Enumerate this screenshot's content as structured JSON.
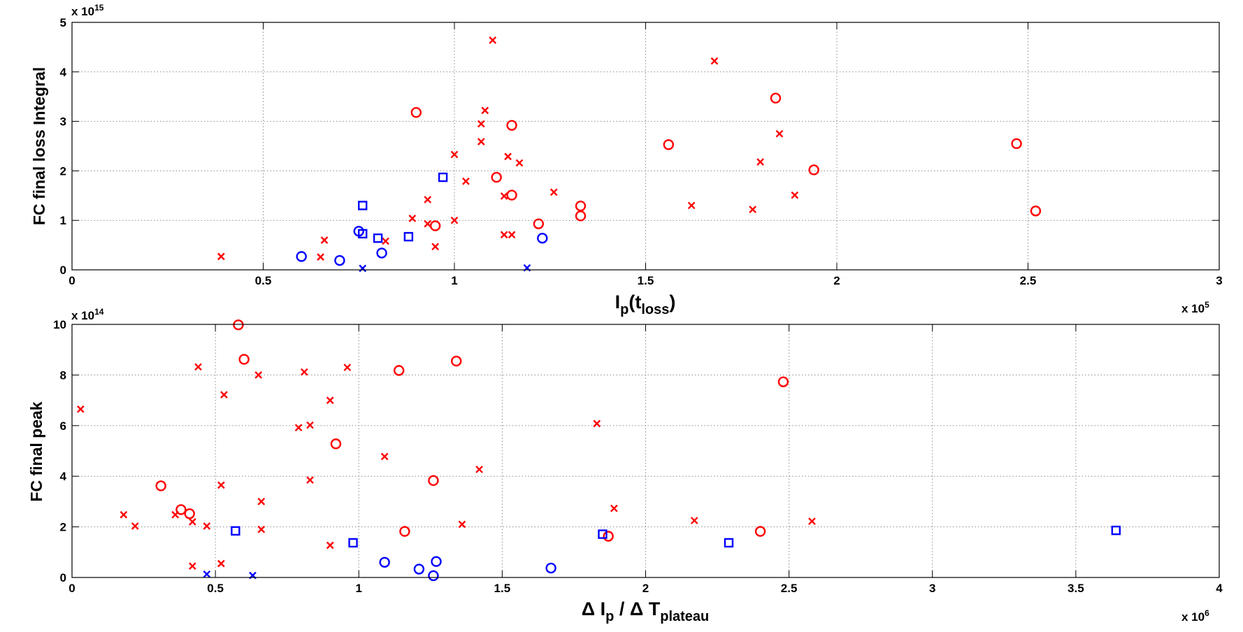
{
  "chart_data": [
    {
      "type": "scatter",
      "xlabel": "I_p(t_loss)",
      "ylabel": "FC final loss Integral",
      "xlim": [
        0,
        300000
      ],
      "ylim": [
        0,
        5000000000000000.0
      ],
      "xticks": [
        0,
        0.5,
        1,
        1.5,
        2,
        2.5,
        3
      ],
      "xtick_labels": [
        "0",
        "0.5",
        "1",
        "1.5",
        "2",
        "2.5",
        "3"
      ],
      "yticks": [
        0,
        1,
        2,
        3,
        4,
        5
      ],
      "ytick_labels": [
        "0",
        "1",
        "2",
        "3",
        "4",
        "5"
      ],
      "xscale_label": {
        "base": "x 10",
        "exp": "5"
      },
      "yscale_label": {
        "base": "x 10",
        "exp": "15"
      },
      "grid": true,
      "series": [
        {
          "name": "red-x",
          "color": "#ff0000",
          "marker": "x",
          "points": [
            [
              39000,
              270000000000000.0
            ],
            [
              65000,
              260000000000000.0
            ],
            [
              66000,
              600000000000000.0
            ],
            [
              82000,
              580000000000000.0
            ],
            [
              89000,
              1040000000000000.0
            ],
            [
              93000,
              930000000000000.0
            ],
            [
              93000,
              1420000000000000.0
            ],
            [
              95000,
              470000000000000.0
            ],
            [
              100000,
              2330000000000000.0
            ],
            [
              100000,
              1000000000000000.0
            ],
            [
              103000,
              1790000000000000.0
            ],
            [
              107000,
              2950000000000000.0
            ],
            [
              107000,
              2590000000000000.0
            ],
            [
              108000,
              3220000000000000.0
            ],
            [
              110000,
              4640000000000000.0
            ],
            [
              113000,
              1490000000000000.0
            ],
            [
              113000,
              710000000000000.0
            ],
            [
              114000,
              2290000000000000.0
            ],
            [
              115000,
              710000000000000.0
            ],
            [
              117000,
              2160000000000000.0
            ],
            [
              126000,
              1570000000000000.0
            ],
            [
              162000,
              1300000000000000.0
            ],
            [
              168000,
              4220000000000000.0
            ],
            [
              178000,
              1220000000000000.0
            ],
            [
              180000,
              2180000000000000.0
            ],
            [
              185000,
              2750000000000000.0
            ],
            [
              189000,
              1510000000000000.0
            ]
          ]
        },
        {
          "name": "red-o",
          "color": "#ff0000",
          "marker": "o",
          "points": [
            [
              90000,
              3180000000000000.0
            ],
            [
              95000,
              890000000000000.0
            ],
            [
              111000,
              1870000000000000.0
            ],
            [
              115000,
              2920000000000000.0
            ],
            [
              115000,
              1510000000000000.0
            ],
            [
              122000,
              930000000000000.0
            ],
            [
              133000,
              1290000000000000.0
            ],
            [
              133000,
              1090000000000000.0
            ],
            [
              156000,
              2530000000000000.0
            ],
            [
              184000,
              3470000000000000.0
            ],
            [
              194000,
              2020000000000000.0
            ],
            [
              247000,
              2550000000000000.0
            ],
            [
              252000,
              1190000000000000.0
            ]
          ]
        },
        {
          "name": "blue-o",
          "color": "#0000ff",
          "marker": "o",
          "points": [
            [
              60000,
              270000000000000.0
            ],
            [
              70000,
              190000000000000.0
            ],
            [
              75000,
              780000000000000.0
            ],
            [
              81000,
              340000000000000.0
            ],
            [
              123000,
              640000000000000.0
            ]
          ]
        },
        {
          "name": "blue-square",
          "color": "#0000ff",
          "marker": "square",
          "points": [
            [
              76000,
              730000000000000.0
            ],
            [
              76000,
              1300000000000000.0
            ],
            [
              80000,
              640000000000000.0
            ],
            [
              88000,
              670000000000000.0
            ],
            [
              97000,
              1870000000000000.0
            ]
          ]
        },
        {
          "name": "blue-x",
          "color": "#0000ff",
          "marker": "x",
          "points": [
            [
              76000,
              30000000000000.0
            ],
            [
              119000,
              40000000000000.0
            ]
          ]
        }
      ]
    },
    {
      "type": "scatter",
      "xlabel": "Δ I_p / Δ T_plateau",
      "ylabel": "FC final peak",
      "xlim": [
        0,
        4000000
      ],
      "ylim": [
        0,
        1000000000000000.0
      ],
      "xticks": [
        0,
        0.5,
        1,
        1.5,
        2,
        2.5,
        3,
        3.5,
        4
      ],
      "xtick_labels": [
        "0",
        "0.5",
        "1",
        "1.5",
        "2",
        "2.5",
        "3",
        "3.5",
        "4"
      ],
      "yticks": [
        0,
        2,
        4,
        6,
        8,
        10
      ],
      "ytick_labels": [
        "0",
        "2",
        "4",
        "6",
        "8",
        "10"
      ],
      "xscale_label": {
        "base": "x 10",
        "exp": "6"
      },
      "yscale_label": {
        "base": "x 10",
        "exp": "14"
      },
      "grid": true,
      "series": [
        {
          "name": "red-x",
          "color": "#ff0000",
          "marker": "x",
          "points": [
            [
              30000,
              665000000000000.0
            ],
            [
              180000,
              248000000000000.0
            ],
            [
              220000,
              203000000000000.0
            ],
            [
              360000,
              248000000000000.0
            ],
            [
              420000,
              220000000000000.0
            ],
            [
              420000,
              45000000000000.0
            ],
            [
              440000,
              832000000000000.0
            ],
            [
              470000,
              203000000000000.0
            ],
            [
              520000,
              365000000000000.0
            ],
            [
              520000,
              55000000000000.0
            ],
            [
              530000,
              722000000000000.0
            ],
            [
              650000,
              800000000000000.0
            ],
            [
              660000,
              300000000000000.0
            ],
            [
              660000,
              190000000000000.0
            ],
            [
              790000,
              592000000000000.0
            ],
            [
              810000,
              812000000000000.0
            ],
            [
              830000,
              602000000000000.0
            ],
            [
              830000,
              385000000000000.0
            ],
            [
              900000,
              700000000000000.0
            ],
            [
              900000,
              127000000000000.0
            ],
            [
              960000,
              830000000000000.0
            ],
            [
              1090000,
              478000000000000.0
            ],
            [
              1360000,
              210000000000000.0
            ],
            [
              1420000,
              427000000000000.0
            ],
            [
              1830000,
              608000000000000.0
            ],
            [
              1890000,
              273000000000000.0
            ],
            [
              2170000,
              225000000000000.0
            ],
            [
              2580000,
              222000000000000.0
            ]
          ]
        },
        {
          "name": "red-o",
          "color": "#ff0000",
          "marker": "o",
          "points": [
            [
              310000,
              362000000000000.0
            ],
            [
              380000,
              268000000000000.0
            ],
            [
              410000,
              252000000000000.0
            ],
            [
              580000,
              998000000000000.0
            ],
            [
              600000,
              862000000000000.0
            ],
            [
              920000,
              528000000000000.0
            ],
            [
              1140000,
              818000000000000.0
            ],
            [
              1160000,
              182000000000000.0
            ],
            [
              1260000,
              383000000000000.0
            ],
            [
              1340000,
              855000000000000.0
            ],
            [
              1870000,
              163000000000000.0
            ],
            [
              2400000,
              182000000000000.0
            ],
            [
              2480000,
              773000000000000.0
            ]
          ]
        },
        {
          "name": "blue-o",
          "color": "#0000ff",
          "marker": "o",
          "points": [
            [
              1090000,
              60000000000000.0
            ],
            [
              1210000,
              33000000000000.0
            ],
            [
              1260000,
              7000000000000.0
            ],
            [
              1270000,
              63000000000000.0
            ],
            [
              1670000,
              37000000000000.0
            ]
          ]
        },
        {
          "name": "blue-square",
          "color": "#0000ff",
          "marker": "square",
          "points": [
            [
              570000,
              184000000000000.0
            ],
            [
              980000,
              137000000000000.0
            ],
            [
              1850000,
              171000000000000.0
            ],
            [
              2290000,
              137000000000000.0
            ],
            [
              3640000,
              186000000000000.0
            ]
          ]
        },
        {
          "name": "blue-x",
          "color": "#0000ff",
          "marker": "x",
          "points": [
            [
              470000,
              13000000000000.0
            ],
            [
              630000,
              8000000000000.0
            ]
          ]
        }
      ]
    }
  ]
}
